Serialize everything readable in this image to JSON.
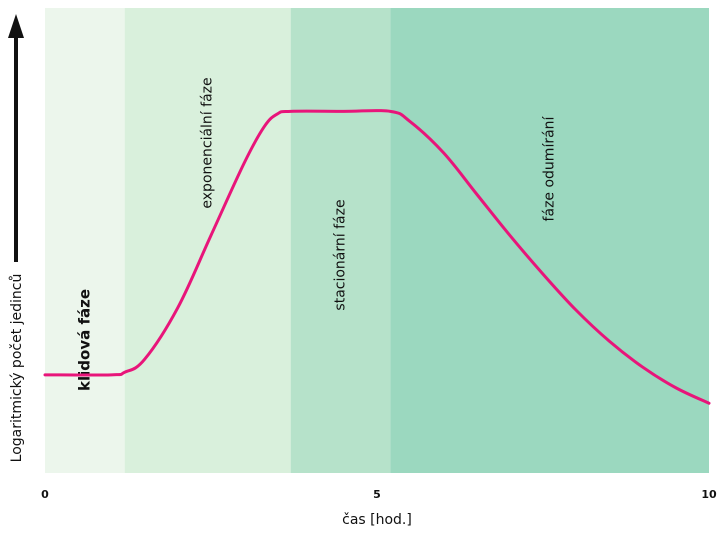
{
  "chart_data": {
    "type": "line",
    "title": "",
    "xlabel": "čas [hod.]",
    "ylabel": "Logaritmický počet jedinců",
    "xlim": [
      0,
      10
    ],
    "x_ticks": [
      {
        "value": 0,
        "label": "0"
      },
      {
        "value": 5,
        "label": "5"
      },
      {
        "value": 10,
        "label": "10"
      }
    ],
    "y_ticks": [],
    "grid": false,
    "legend": "none",
    "phases": [
      {
        "label": "klidová fáze",
        "x_start": 0,
        "x_end": 1.2,
        "color": "#ecf6ec",
        "bold": true
      },
      {
        "label": "exponenciální fáze",
        "x_start": 1.2,
        "x_end": 3.7,
        "color": "#d9f0dc",
        "bold": false
      },
      {
        "label": "stacionární fáze",
        "x_start": 3.7,
        "x_end": 5.2,
        "color": "#b6e2ca",
        "bold": false
      },
      {
        "label": "fáze odumírání",
        "x_start": 5.2,
        "x_end": 10,
        "color": "#9bd8bf",
        "bold": false
      }
    ],
    "series": [
      {
        "color": "#e8157a",
        "x": [
          0,
          1.0,
          1.2,
          1.5,
          2.0,
          2.5,
          3.0,
          3.3,
          3.5,
          3.7,
          4.5,
          5.2,
          5.5,
          6.0,
          6.5,
          7.0,
          7.5,
          8.0,
          8.5,
          9.0,
          9.5,
          10
        ],
        "y": [
          1.9,
          1.9,
          1.95,
          2.2,
          3.2,
          4.6,
          6.0,
          6.7,
          6.95,
          7.0,
          7.0,
          7.0,
          6.8,
          6.2,
          5.4,
          4.6,
          3.85,
          3.15,
          2.55,
          2.05,
          1.65,
          1.35
        ]
      }
    ],
    "ylim": [
      0,
      9
    ]
  }
}
